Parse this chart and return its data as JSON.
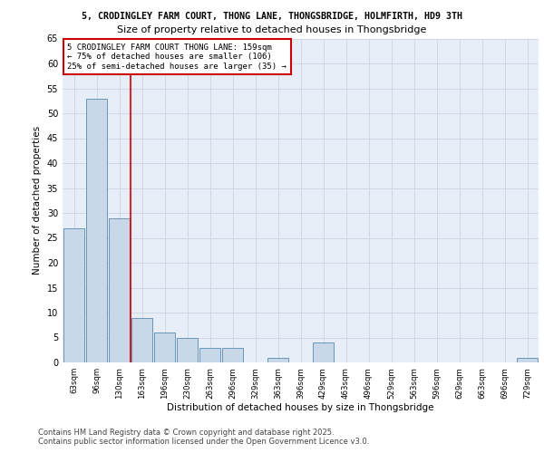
{
  "title1": "5, CRODINGLEY FARM COURT, THONG LANE, THONGSBRIDGE, HOLMFIRTH, HD9 3TH",
  "title2": "Size of property relative to detached houses in Thongsbridge",
  "xlabel": "Distribution of detached houses by size in Thongsbridge",
  "ylabel": "Number of detached properties",
  "categories": [
    "63sqm",
    "96sqm",
    "130sqm",
    "163sqm",
    "196sqm",
    "230sqm",
    "263sqm",
    "296sqm",
    "329sqm",
    "363sqm",
    "396sqm",
    "429sqm",
    "463sqm",
    "496sqm",
    "529sqm",
    "563sqm",
    "596sqm",
    "629sqm",
    "663sqm",
    "696sqm",
    "729sqm"
  ],
  "values": [
    27,
    53,
    29,
    9,
    6,
    5,
    3,
    3,
    0,
    1,
    0,
    4,
    0,
    0,
    0,
    0,
    0,
    0,
    0,
    0,
    1
  ],
  "bar_color": "#c8d8e8",
  "bar_edge_color": "#5a8ab0",
  "vline_color": "#cc0000",
  "vline_x": 2.5,
  "annotation_text": "5 CRODINGLEY FARM COURT THONG LANE: 159sqm\n← 75% of detached houses are smaller (106)\n25% of semi-detached houses are larger (35) →",
  "annotation_box_color": "#ffffff",
  "annotation_box_edge": "#cc0000",
  "ylim": [
    0,
    65
  ],
  "yticks": [
    0,
    5,
    10,
    15,
    20,
    25,
    30,
    35,
    40,
    45,
    50,
    55,
    60,
    65
  ],
  "grid_color": "#d0d8e8",
  "bg_color": "#e8eef8",
  "footer1": "Contains HM Land Registry data © Crown copyright and database right 2025.",
  "footer2": "Contains public sector information licensed under the Open Government Licence v3.0."
}
